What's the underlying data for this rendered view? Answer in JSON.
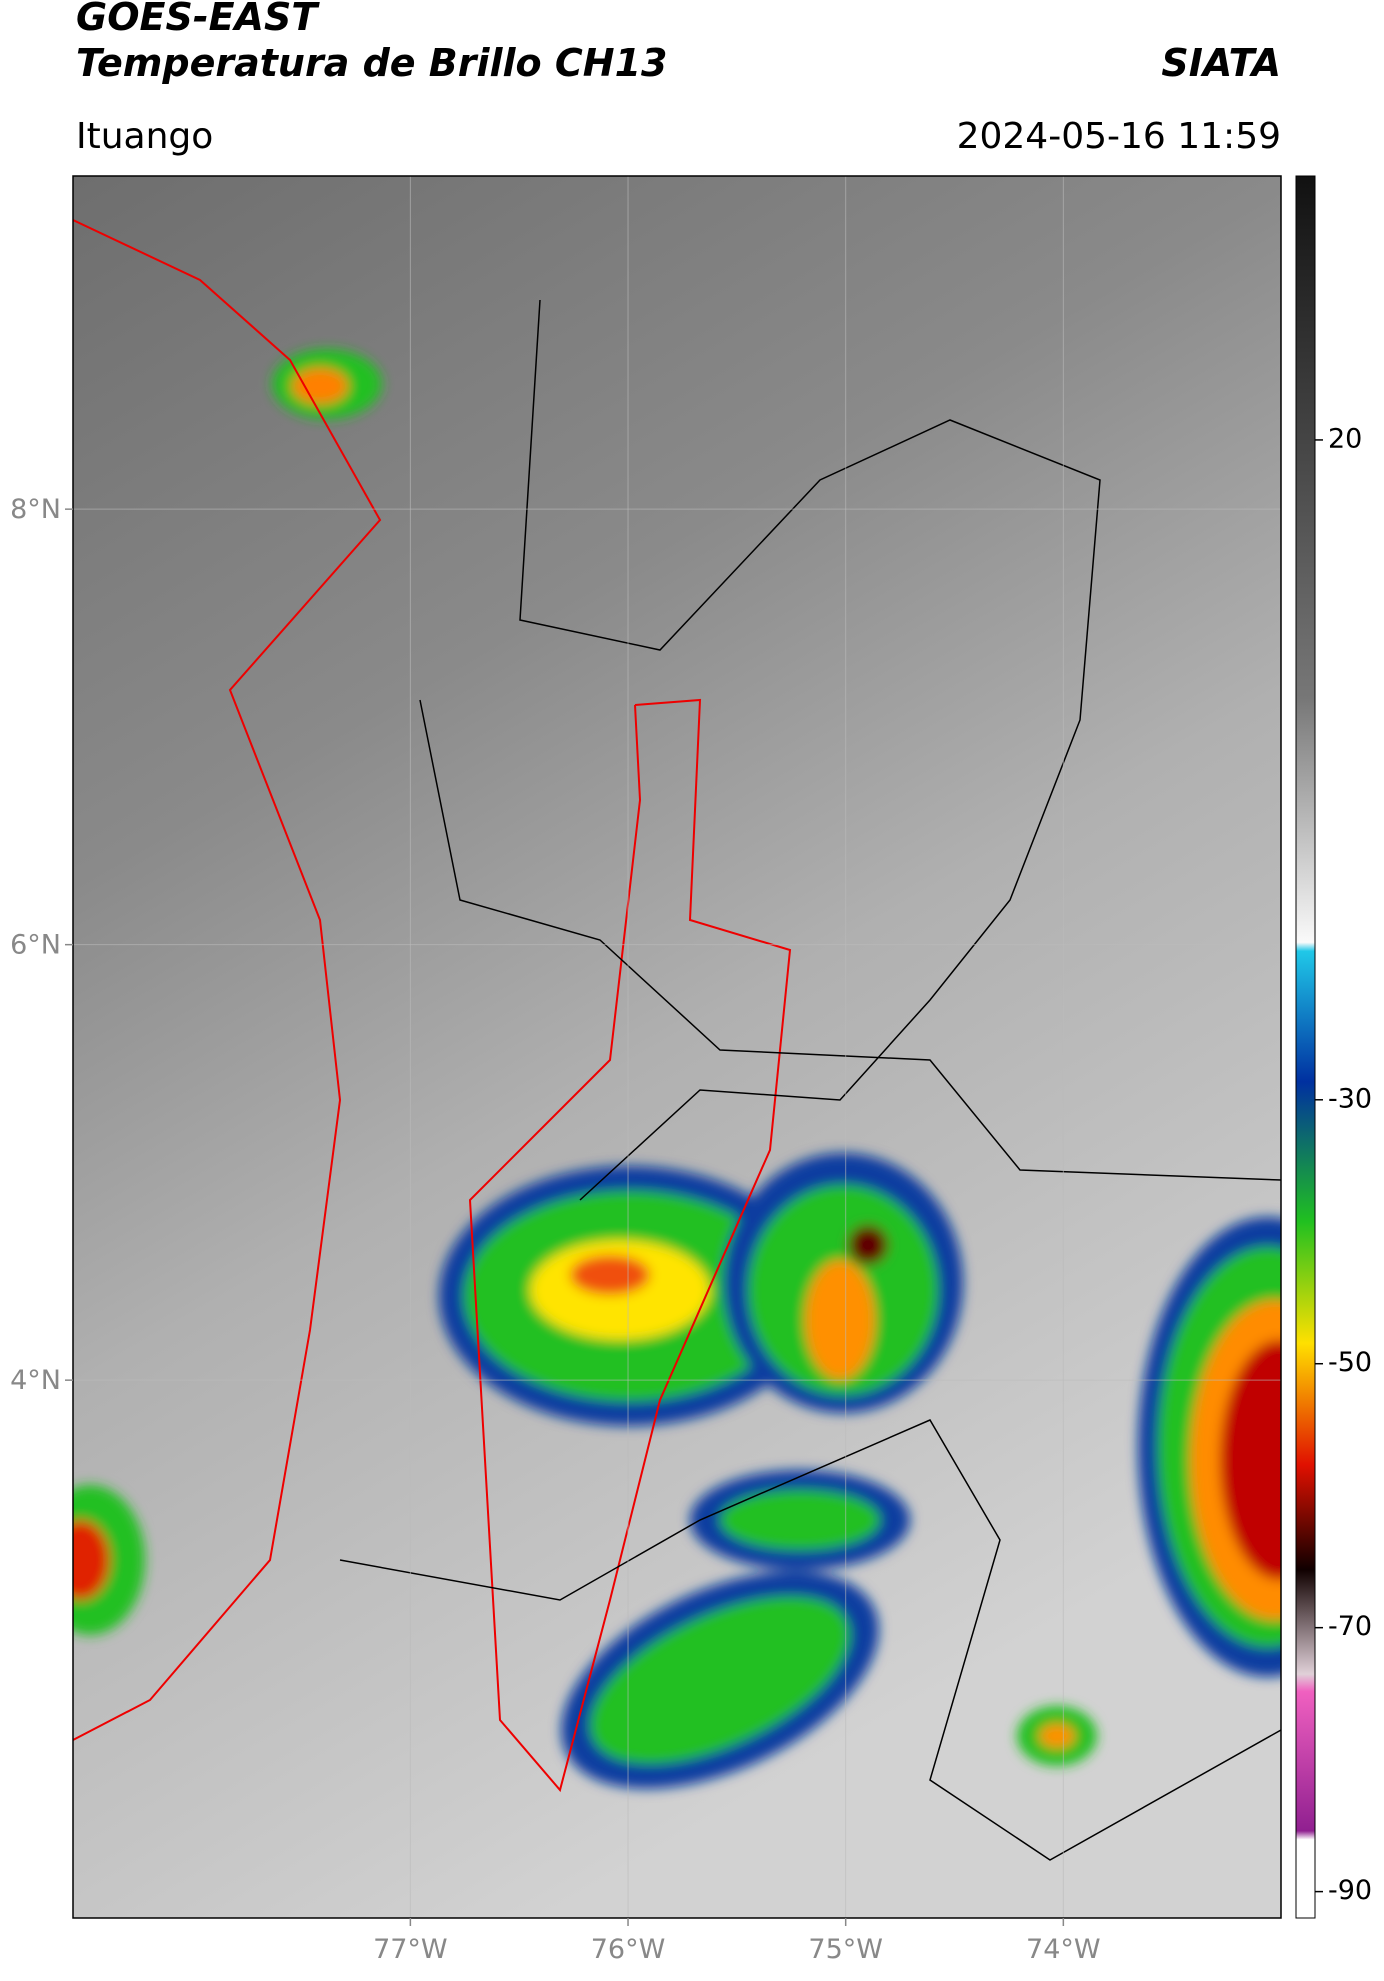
{
  "header": {
    "title": "GOES-EAST",
    "subtitle": "Temperatura de Brillo CH13",
    "org": "SIATA",
    "location": "Ituango",
    "datetime": "2024-05-16 11:59"
  },
  "map": {
    "xlim": [
      -78.55,
      -73.0
    ],
    "ylim": [
      1.53,
      9.53
    ],
    "xticks": [
      {
        "value": -77,
        "label": "77°W"
      },
      {
        "value": -76,
        "label": "76°W"
      },
      {
        "value": -75,
        "label": "75°W"
      },
      {
        "value": -74,
        "label": "74°W"
      }
    ],
    "yticks": [
      {
        "value": 4,
        "label": "4°N"
      },
      {
        "value": 6,
        "label": "6°N"
      },
      {
        "value": 8,
        "label": "8°N"
      }
    ]
  },
  "colorbar": {
    "lim": [
      -92,
      40
    ],
    "ticks": [
      20,
      -30,
      -50,
      -70,
      -90
    ]
  }
}
